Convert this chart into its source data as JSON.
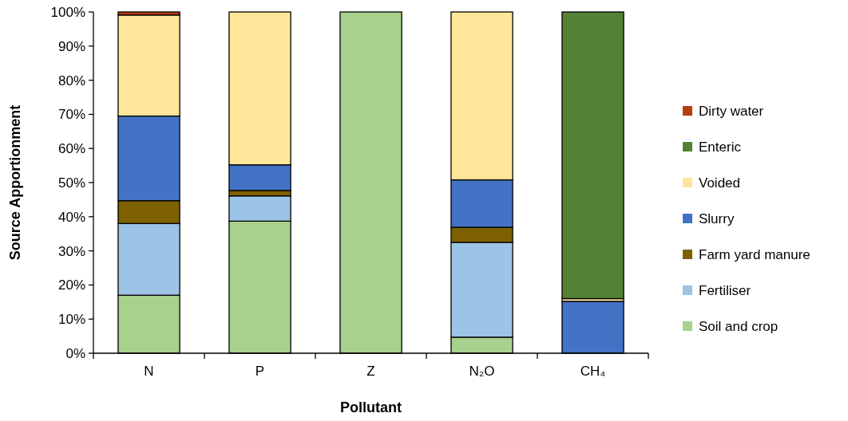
{
  "chart_data": {
    "type": "bar",
    "stacked": true,
    "xlabel": "Pollutant",
    "ylabel": "Source Apportionment",
    "categories": [
      "N",
      "P",
      "Z",
      "N₂O",
      "CH₄"
    ],
    "series": [
      {
        "name": "Soil and crop",
        "color": "#a9d18e",
        "values": [
          17,
          38.7,
          100,
          4.7,
          0
        ]
      },
      {
        "name": "Fertiliser",
        "color": "#9dc3e6",
        "values": [
          21,
          7.4,
          0,
          27.8,
          0
        ]
      },
      {
        "name": "Farm yard manure",
        "color": "#7f6000",
        "values": [
          6.7,
          1.6,
          0,
          4.4,
          0
        ]
      },
      {
        "name": "Slurry",
        "color": "#4472c4",
        "values": [
          24.8,
          7.5,
          0,
          13.9,
          15.2
        ]
      },
      {
        "name": "Voided",
        "color": "#ffe699",
        "values": [
          29.6,
          44.8,
          0,
          49.2,
          0.8
        ]
      },
      {
        "name": "Enteric",
        "color": "#548235",
        "values": [
          0,
          0,
          0,
          0,
          84
        ]
      },
      {
        "name": "Dirty water",
        "color": "#b83c0c",
        "values": [
          0.9,
          0,
          0,
          0,
          0
        ]
      }
    ],
    "ylim": [
      0,
      100
    ],
    "yticks": [
      {
        "value": 0,
        "label": "0%"
      },
      {
        "value": 10,
        "label": "10%"
      },
      {
        "value": 20,
        "label": "20%"
      },
      {
        "value": 30,
        "label": "30%"
      },
      {
        "value": 40,
        "label": "40%"
      },
      {
        "value": 50,
        "label": "50%"
      },
      {
        "value": 60,
        "label": "60%"
      },
      {
        "value": 70,
        "label": "70%"
      },
      {
        "value": 80,
        "label": "80%"
      },
      {
        "value": 90,
        "label": "90%"
      },
      {
        "value": 100,
        "label": "100%"
      }
    ],
    "legend": "right",
    "grid": false
  }
}
